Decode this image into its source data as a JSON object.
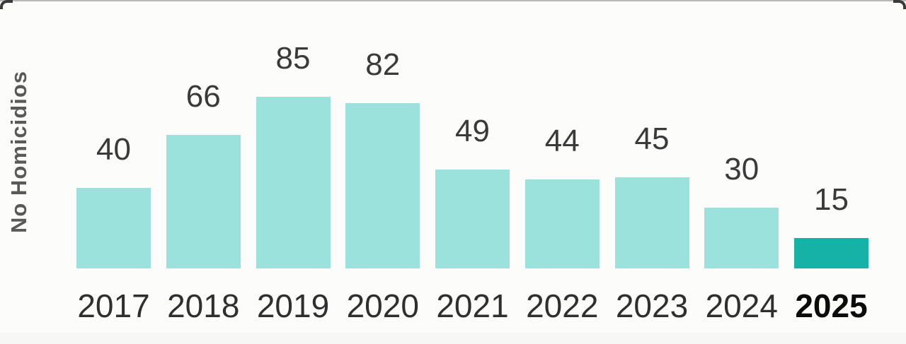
{
  "chart_data": {
    "type": "bar",
    "title": "",
    "xlabel": "",
    "ylabel": "No Homicidios",
    "categories": [
      "2017",
      "2018",
      "2019",
      "2020",
      "2021",
      "2022",
      "2023",
      "2024",
      "2025"
    ],
    "values": [
      40,
      66,
      85,
      82,
      49,
      44,
      45,
      30,
      15
    ],
    "ylim": [
      0,
      85
    ],
    "grid": "off",
    "legend": "none",
    "data_labels": "on",
    "bar_color": "#9AE2DB",
    "highlight_color": "#16B1A7",
    "highlight_category": "2025",
    "value_label_color": "#3A3A3A",
    "tick_label_color": "#2F2F2F",
    "highlight_tick_label_color": "#0B0B0B",
    "axis_title_color": "#595959"
  }
}
